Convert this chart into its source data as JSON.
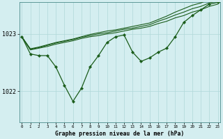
{
  "title": "Graphe pression niveau de la mer (hPa)",
  "bg_color": "#d4eef0",
  "grid_color": "#b0d8d8",
  "line_color": "#1a5c1a",
  "x_ticks": [
    0,
    1,
    2,
    3,
    4,
    5,
    6,
    7,
    8,
    9,
    10,
    11,
    12,
    13,
    14,
    15,
    16,
    17,
    18,
    19,
    20,
    21,
    22,
    23
  ],
  "y_ticks": [
    1022,
    1023
  ],
  "ylim": [
    1021.45,
    1023.55
  ],
  "xlim": [
    -0.3,
    23.3
  ],
  "main_line": [
    1022.95,
    1022.65,
    1022.62,
    1022.62,
    1022.42,
    1022.1,
    1021.82,
    1022.05,
    1022.42,
    1022.62,
    1022.85,
    1022.95,
    1022.98,
    1022.68,
    1022.52,
    1022.58,
    1022.68,
    1022.75,
    1022.95,
    1023.2,
    1023.32,
    1023.42,
    1023.52,
    1023.55
  ],
  "band_line1": [
    1022.95,
    1022.72,
    1022.75,
    1022.78,
    1022.82,
    1022.85,
    1022.88,
    1022.92,
    1022.95,
    1022.97,
    1023.0,
    1023.02,
    1023.05,
    1023.08,
    1023.1,
    1023.13,
    1023.18,
    1023.22,
    1023.28,
    1023.32,
    1023.38,
    1023.42,
    1023.48,
    1023.52
  ],
  "band_line2": [
    1022.95,
    1022.73,
    1022.76,
    1022.8,
    1022.84,
    1022.87,
    1022.9,
    1022.94,
    1022.97,
    1023.0,
    1023.02,
    1023.05,
    1023.08,
    1023.1,
    1023.13,
    1023.16,
    1023.22,
    1023.27,
    1023.33,
    1023.38,
    1023.44,
    1023.48,
    1023.54,
    1023.58
  ],
  "band_line3": [
    1022.95,
    1022.74,
    1022.77,
    1022.81,
    1022.85,
    1022.88,
    1022.91,
    1022.95,
    1022.99,
    1023.02,
    1023.05,
    1023.07,
    1023.1,
    1023.13,
    1023.16,
    1023.19,
    1023.25,
    1023.31,
    1023.38,
    1023.44,
    1023.5,
    1023.54,
    1023.6,
    1023.65
  ]
}
